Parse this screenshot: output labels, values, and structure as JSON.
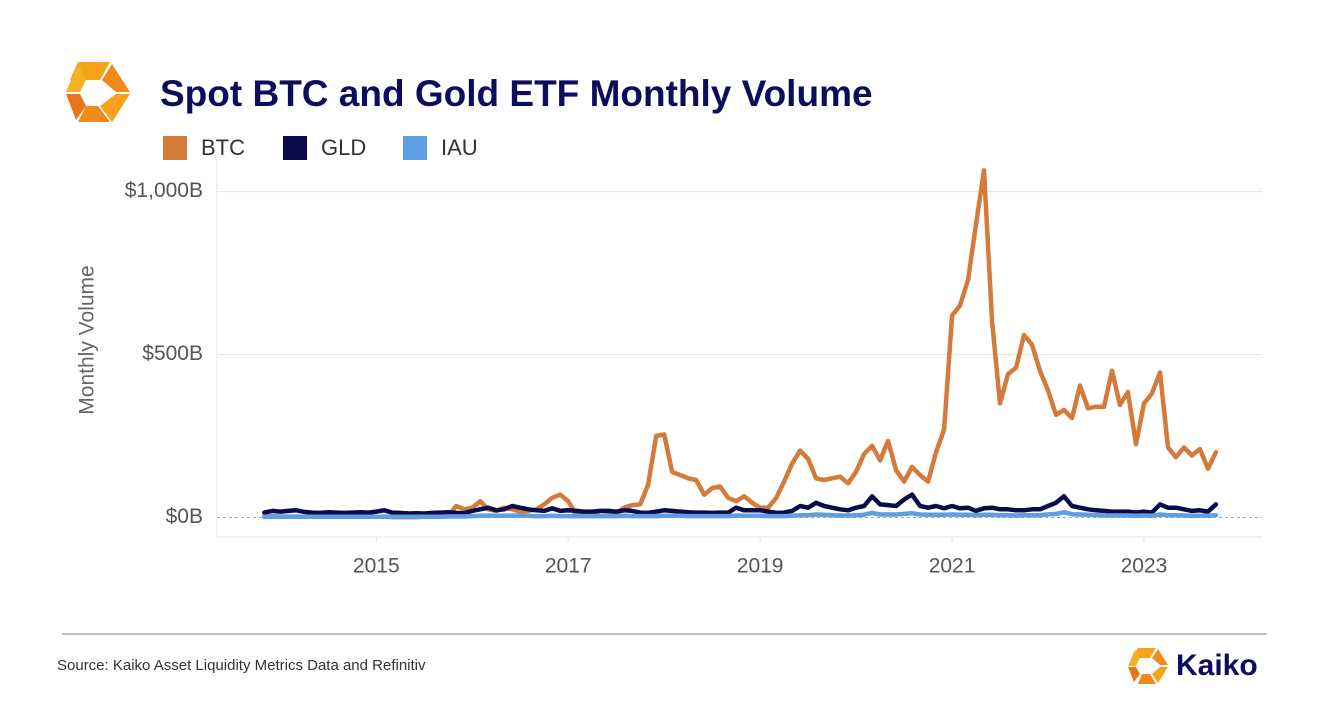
{
  "chart_data": {
    "type": "line",
    "title": "Spot BTC and Gold ETF Monthly Volume",
    "y_label": "Monthly Volume",
    "source": "Source: Kaiko Asset Liquidity Metrics Data and Refinitiv",
    "brand": "Kaiko",
    "legend": "top-left",
    "grid": true,
    "xlim": [
      2013.34,
      2024.23
    ],
    "xticks": [
      2015,
      2017,
      2019,
      2021,
      2023
    ],
    "ylim": [
      -60,
      1100
    ],
    "yticks": [
      {
        "value": 0,
        "label": "$0B"
      },
      {
        "value": 500,
        "label": "$500B"
      },
      {
        "value": 1000,
        "label": "$1,000B"
      }
    ],
    "x": [
      2013.833,
      2013.917,
      2014,
      2014.083,
      2014.167,
      2014.25,
      2014.333,
      2014.417,
      2014.5,
      2014.583,
      2014.667,
      2014.75,
      2014.833,
      2014.917,
      2015,
      2015.083,
      2015.167,
      2015.25,
      2015.333,
      2015.417,
      2015.5,
      2015.583,
      2015.667,
      2015.75,
      2015.833,
      2015.917,
      2016,
      2016.083,
      2016.167,
      2016.25,
      2016.333,
      2016.417,
      2016.5,
      2016.583,
      2016.667,
      2016.75,
      2016.833,
      2016.917,
      2017,
      2017.083,
      2017.167,
      2017.25,
      2017.333,
      2017.417,
      2017.5,
      2017.583,
      2017.667,
      2017.75,
      2017.833,
      2017.917,
      2018,
      2018.083,
      2018.167,
      2018.25,
      2018.333,
      2018.417,
      2018.5,
      2018.583,
      2018.667,
      2018.75,
      2018.833,
      2018.917,
      2019,
      2019.083,
      2019.167,
      2019.25,
      2019.333,
      2019.417,
      2019.5,
      2019.583,
      2019.667,
      2019.75,
      2019.833,
      2019.917,
      2020,
      2020.083,
      2020.167,
      2020.25,
      2020.333,
      2020.417,
      2020.5,
      2020.583,
      2020.667,
      2020.75,
      2020.833,
      2020.917,
      2021,
      2021.083,
      2021.167,
      2021.25,
      2021.333,
      2021.417,
      2021.5,
      2021.583,
      2021.667,
      2021.75,
      2021.833,
      2021.917,
      2022,
      2022.083,
      2022.167,
      2022.25,
      2022.333,
      2022.417,
      2022.5,
      2022.583,
      2022.667,
      2022.75,
      2022.833,
      2022.917,
      2023,
      2023.083,
      2023.167,
      2023.25,
      2023.333,
      2023.417,
      2023.5,
      2023.583,
      2023.667,
      2023.75
    ],
    "series": [
      {
        "name": "BTC",
        "color": "#d47a3a",
        "values": [
          3,
          4,
          3,
          3,
          2,
          2,
          2,
          3,
          3,
          2,
          2,
          3,
          3,
          2,
          2,
          2,
          1,
          1,
          1,
          1,
          2,
          2,
          3,
          5,
          35,
          25,
          30,
          50,
          25,
          20,
          30,
          25,
          18,
          20,
          25,
          40,
          60,
          70,
          50,
          8,
          5,
          10,
          20,
          18,
          12,
          30,
          38,
          40,
          100,
          250,
          255,
          140,
          130,
          120,
          115,
          70,
          90,
          95,
          60,
          50,
          65,
          45,
          30,
          30,
          60,
          110,
          165,
          205,
          180,
          120,
          115,
          120,
          125,
          105,
          140,
          195,
          220,
          175,
          235,
          145,
          110,
          155,
          130,
          110,
          200,
          270,
          620,
          650,
          730,
          900,
          1065,
          600,
          350,
          440,
          460,
          560,
          530,
          450,
          390,
          315,
          330,
          305,
          405,
          335,
          340,
          340,
          450,
          345,
          385,
          225,
          350,
          380,
          445,
          215,
          185,
          215,
          190,
          210,
          150,
          200
        ]
      },
      {
        "name": "GLD",
        "color": "#0b0b4b",
        "values": [
          15,
          20,
          18,
          20,
          22,
          17,
          15,
          14,
          16,
          15,
          14,
          15,
          16,
          15,
          18,
          22,
          15,
          14,
          12,
          13,
          12,
          14,
          15,
          16,
          14,
          13,
          20,
          25,
          30,
          22,
          25,
          35,
          30,
          25,
          22,
          20,
          28,
          20,
          22,
          20,
          18,
          18,
          20,
          20,
          18,
          22,
          20,
          15,
          14,
          18,
          22,
          20,
          18,
          16,
          15,
          15,
          14,
          15,
          15,
          30,
          22,
          22,
          22,
          18,
          14,
          15,
          20,
          35,
          30,
          45,
          35,
          30,
          25,
          22,
          30,
          35,
          65,
          40,
          38,
          35,
          55,
          70,
          35,
          30,
          35,
          28,
          35,
          28,
          30,
          20,
          28,
          30,
          25,
          25,
          22,
          22,
          25,
          25,
          35,
          45,
          65,
          35,
          30,
          25,
          22,
          20,
          18,
          18,
          18,
          15,
          18,
          15,
          40,
          30,
          30,
          25,
          20,
          22,
          18,
          40
        ]
      },
      {
        "name": "IAU",
        "color": "#5e9ee3",
        "values": [
          2,
          2,
          2,
          2,
          3,
          2,
          2,
          2,
          2,
          2,
          2,
          2,
          2,
          2,
          2,
          3,
          2,
          2,
          2,
          2,
          2,
          2,
          2,
          3,
          3,
          3,
          4,
          5,
          6,
          5,
          5,
          6,
          5,
          5,
          4,
          4,
          5,
          4,
          4,
          4,
          4,
          4,
          4,
          4,
          4,
          5,
          4,
          4,
          4,
          4,
          5,
          5,
          5,
          4,
          4,
          4,
          4,
          4,
          4,
          6,
          5,
          5,
          5,
          4,
          4,
          4,
          5,
          7,
          7,
          9,
          8,
          7,
          6,
          6,
          7,
          8,
          14,
          9,
          9,
          9,
          11,
          13,
          9,
          8,
          8,
          8,
          9,
          8,
          8,
          7,
          8,
          8,
          7,
          7,
          6,
          7,
          7,
          7,
          9,
          11,
          16,
          10,
          9,
          8,
          7,
          6,
          6,
          6,
          6,
          5,
          6,
          5,
          9,
          7,
          7,
          6,
          5,
          5,
          5,
          7
        ]
      }
    ]
  }
}
